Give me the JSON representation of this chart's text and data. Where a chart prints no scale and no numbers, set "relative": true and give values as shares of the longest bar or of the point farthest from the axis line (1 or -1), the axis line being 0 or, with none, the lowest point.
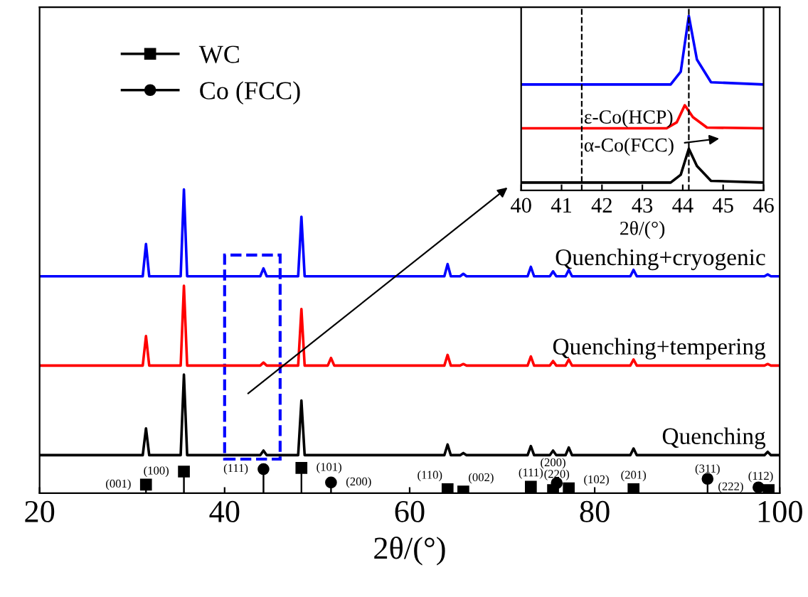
{
  "chart_data": [
    {
      "type": "line",
      "relative": true,
      "xlabel": "2θ/(°)",
      "xlim": [
        20,
        100
      ],
      "xticks": [
        20,
        40,
        60,
        80,
        100
      ],
      "tick_labels": "x",
      "legend": "top left",
      "grid": false,
      "series": [
        {
          "name": "Quenching+cryogenic",
          "color": "#0000ff",
          "x": [
            20,
            31.15,
            31.5,
            31.85,
            35.25,
            35.6,
            35.95,
            43.85,
            44.2,
            44.55,
            47.95,
            48.3,
            48.65,
            63.75,
            64.1,
            64.45,
            65.45,
            65.8,
            66.15,
            72.75,
            73.1,
            73.45,
            75.15,
            75.5,
            75.85,
            76.85,
            77.2,
            77.55,
            83.85,
            84.2,
            84.55,
            98.35,
            98.7,
            99.05,
            100
          ],
          "values": [
            0.714,
            0.714,
            0.82,
            0.714,
            0.714,
            1.0,
            0.714,
            0.714,
            0.74,
            0.714,
            0.714,
            0.91,
            0.714,
            0.714,
            0.754,
            0.714,
            0.714,
            0.722,
            0.714,
            0.714,
            0.745,
            0.714,
            0.714,
            0.73,
            0.714,
            0.714,
            0.735,
            0.714,
            0.714,
            0.735,
            0.714,
            0.714,
            0.72,
            0.714,
            0.714
          ]
        },
        {
          "name": "Quenching+tempering",
          "color": "#ff0000",
          "x": [
            20,
            31.15,
            31.5,
            31.85,
            35.25,
            35.6,
            35.95,
            43.85,
            44.2,
            44.55,
            47.95,
            48.3,
            48.65,
            51.15,
            51.5,
            51.85,
            63.75,
            64.1,
            64.45,
            65.45,
            65.8,
            66.15,
            72.75,
            73.1,
            73.45,
            75.15,
            75.5,
            75.85,
            76.85,
            77.2,
            77.55,
            83.85,
            84.2,
            84.55,
            98.35,
            98.7,
            99.05,
            100
          ],
          "values": [
            0.42,
            0.42,
            0.517,
            0.42,
            0.42,
            0.683,
            0.42,
            0.42,
            0.43,
            0.42,
            0.42,
            0.606,
            0.42,
            0.42,
            0.445,
            0.42,
            0.42,
            0.455,
            0.42,
            0.42,
            0.425,
            0.42,
            0.42,
            0.45,
            0.42,
            0.42,
            0.435,
            0.42,
            0.42,
            0.44,
            0.42,
            0.42,
            0.44,
            0.42,
            0.42,
            0.425,
            0.42,
            0.42
          ]
        },
        {
          "name": "Quenching",
          "color": "#000000",
          "x": [
            20,
            31.15,
            31.5,
            31.85,
            35.25,
            35.6,
            35.95,
            43.85,
            44.2,
            44.55,
            47.95,
            48.3,
            48.65,
            63.75,
            64.1,
            64.45,
            65.45,
            65.8,
            66.15,
            72.75,
            73.1,
            73.45,
            75.15,
            75.5,
            75.85,
            76.85,
            77.2,
            77.55,
            83.85,
            84.2,
            84.55,
            98.35,
            98.7,
            99.05,
            100
          ],
          "values": [
            0.125,
            0.125,
            0.213,
            0.125,
            0.125,
            0.39,
            0.125,
            0.125,
            0.14,
            0.125,
            0.125,
            0.305,
            0.125,
            0.125,
            0.16,
            0.125,
            0.125,
            0.132,
            0.125,
            0.125,
            0.155,
            0.125,
            0.125,
            0.14,
            0.125,
            0.125,
            0.15,
            0.125,
            0.125,
            0.147,
            0.125,
            0.125,
            0.136,
            0.125,
            0.125
          ]
        },
        {
          "name": "WC",
          "type": "lollipop",
          "marker": "square",
          "color": "#000000",
          "x": [
            31.5,
            35.6,
            48.3,
            64.1,
            65.8,
            73.1,
            75.5,
            77.2,
            84.2,
            98.8
          ],
          "values": [
            0.028,
            0.071,
            0.083,
            0.013,
            0.005,
            0.021,
            0.01,
            0.016,
            0.013,
            0.01
          ]
        },
        {
          "name": "Co (FCC)",
          "type": "lollipop",
          "marker": "circle",
          "color": "#000000",
          "x": [
            44.2,
            51.5,
            75.9,
            92.2,
            97.7
          ],
          "values": [
            0.079,
            0.035,
            0.033,
            0.047,
            0.019
          ]
        }
      ],
      "annotations": [
        {
          "text": "(001)",
          "x": 31.5,
          "y": 0.028
        },
        {
          "text": "(100)",
          "x": 35.6,
          "y": 0.071
        },
        {
          "text": "(111)",
          "x": 44.2,
          "y": 0.079
        },
        {
          "text": "(101)",
          "x": 48.3,
          "y": 0.083
        },
        {
          "text": "(200)",
          "x": 51.5,
          "y": 0.035
        },
        {
          "text": "(110)",
          "x": 64.1,
          "y": 0.013
        },
        {
          "text": "(002)",
          "x": 65.8,
          "y": 0.005
        },
        {
          "text": "(111)",
          "x": 73.1,
          "y": 0.021
        },
        {
          "text": "(200)",
          "x": 75.5,
          "y": 0.01
        },
        {
          "text": "(220)",
          "x": 75.9,
          "y": 0.033
        },
        {
          "text": "(102)",
          "x": 77.2,
          "y": 0.016
        },
        {
          "text": "(201)",
          "x": 84.2,
          "y": 0.013
        },
        {
          "text": "(311)",
          "x": 92.2,
          "y": 0.047
        },
        {
          "text": "(222)",
          "x": 97.7,
          "y": 0.019
        },
        {
          "text": "(112)",
          "x": 98.8,
          "y": 0.01
        }
      ]
    },
    {
      "type": "line",
      "relative": true,
      "xlabel": "2θ/(°)",
      "xlim": [
        40,
        46
      ],
      "xticks": [
        40,
        41,
        42,
        43,
        44,
        45,
        46
      ],
      "tick_labels": "x",
      "grid": false,
      "series": [
        {
          "color": "#0000ff",
          "x": [
            40,
            43.7,
            43.95,
            44.15,
            44.35,
            44.7,
            46
          ],
          "values": [
            0.607,
            0.607,
            0.68,
            1.0,
            0.75,
            0.62,
            0.607
          ]
        },
        {
          "color": "#ff0000",
          "x": [
            40,
            43.6,
            43.85,
            44.05,
            44.25,
            44.6,
            46
          ],
          "values": [
            0.356,
            0.356,
            0.39,
            0.488,
            0.42,
            0.36,
            0.356
          ]
        },
        {
          "color": "#000000",
          "x": [
            40,
            43.7,
            43.95,
            44.15,
            44.35,
            44.7,
            46
          ],
          "values": [
            0.045,
            0.045,
            0.09,
            0.239,
            0.14,
            0.055,
            0.045
          ]
        }
      ],
      "ref_lines": [
        {
          "axis": "x",
          "value": 41.5,
          "color": "#000000",
          "line_style": "dashed"
        },
        {
          "axis": "x",
          "value": 44.15,
          "color": "#000000",
          "line_style": "dashed"
        }
      ],
      "annotations": [
        "ε-Co(HCP)",
        "α-Co(FCC)"
      ]
    }
  ]
}
